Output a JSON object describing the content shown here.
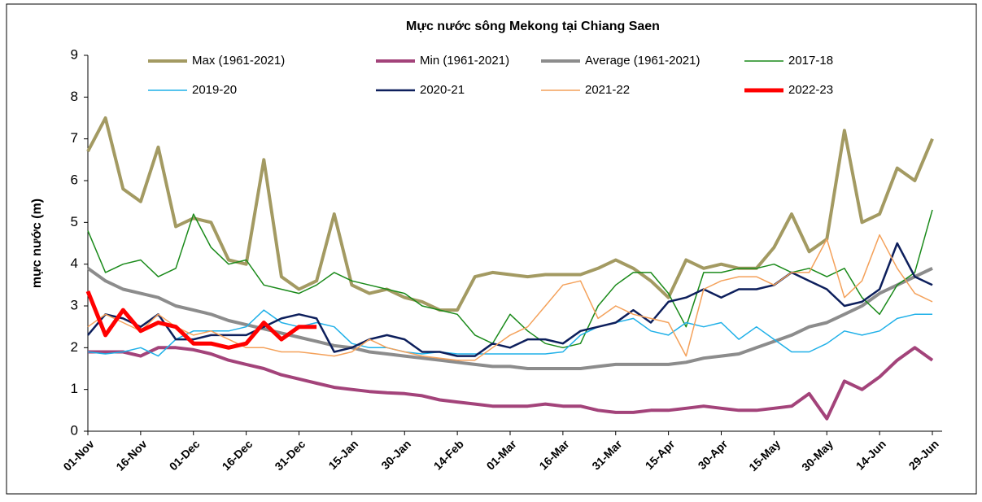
{
  "chart_data": {
    "type": "line",
    "title": "Mực nước sông Mekong tại Chiang Saen",
    "y_label": "mực nước (m)",
    "categories": [
      "01-Nov",
      null,
      null,
      "16-Nov",
      null,
      null,
      "01-Dec",
      null,
      null,
      "16-Dec",
      null,
      null,
      "31-Dec",
      null,
      null,
      "15-Jan",
      null,
      null,
      "30-Jan",
      null,
      null,
      "14-Feb",
      null,
      null,
      "01-Mar",
      null,
      null,
      "16-Mar",
      null,
      null,
      "31-Mar",
      null,
      null,
      "15-Apr",
      null,
      null,
      "30-Apr",
      null,
      null,
      "15-May",
      null,
      null,
      "30-May",
      null,
      null,
      "14-Jun",
      null,
      null,
      "29-Jun"
    ],
    "ylim": [
      0,
      9
    ],
    "yticks": [
      0,
      1,
      2,
      3,
      4,
      5,
      6,
      7,
      8,
      9
    ],
    "grid": false,
    "legend": "top",
    "series": [
      {
        "name": "Max (1961-2021)",
        "color": "#a39a62",
        "values": [
          6.7,
          7.5,
          5.8,
          5.5,
          6.8,
          4.9,
          5.1,
          5.0,
          4.1,
          4.0,
          6.5,
          3.7,
          3.4,
          3.6,
          5.2,
          3.5,
          3.3,
          3.4,
          3.2,
          3.1,
          2.9,
          2.9,
          3.7,
          3.8,
          3.75,
          3.7,
          3.75,
          3.75,
          3.75,
          3.9,
          4.1,
          3.9,
          3.6,
          3.2,
          4.1,
          3.9,
          4.0,
          3.9,
          3.9,
          4.4,
          5.2,
          4.3,
          4.6,
          7.2,
          5.0,
          5.2,
          6.3,
          6.0,
          7.0
        ]
      },
      {
        "name": "Min (1961-2021)",
        "color": "#a3437a",
        "values": [
          1.9,
          1.9,
          1.9,
          1.8,
          2.0,
          2.0,
          1.95,
          1.85,
          1.7,
          1.6,
          1.5,
          1.35,
          1.25,
          1.15,
          1.05,
          1.0,
          0.95,
          0.92,
          0.9,
          0.85,
          0.75,
          0.7,
          0.65,
          0.6,
          0.6,
          0.6,
          0.65,
          0.6,
          0.6,
          0.5,
          0.45,
          0.45,
          0.5,
          0.5,
          0.55,
          0.6,
          0.55,
          0.5,
          0.5,
          0.55,
          0.6,
          0.9,
          0.3,
          1.2,
          1.0,
          1.3,
          1.7,
          2.0,
          1.7
        ]
      },
      {
        "name": "Average (1961-2021)",
        "color": "#8c8c8c",
        "values": [
          3.9,
          3.6,
          3.4,
          3.3,
          3.2,
          3.0,
          2.9,
          2.8,
          2.65,
          2.55,
          2.45,
          2.35,
          2.25,
          2.15,
          2.05,
          2.0,
          1.9,
          1.85,
          1.8,
          1.75,
          1.7,
          1.65,
          1.6,
          1.55,
          1.55,
          1.5,
          1.5,
          1.5,
          1.5,
          1.55,
          1.6,
          1.6,
          1.6,
          1.6,
          1.65,
          1.75,
          1.8,
          1.85,
          2.0,
          2.15,
          2.3,
          2.5,
          2.6,
          2.8,
          3.0,
          3.3,
          3.5,
          3.7,
          3.9
        ]
      },
      {
        "name": "2017-18",
        "color": "#1a8a1a",
        "values": [
          4.8,
          3.8,
          4.0,
          4.1,
          3.7,
          3.9,
          5.2,
          4.4,
          4.0,
          4.1,
          3.5,
          3.4,
          3.3,
          3.5,
          3.8,
          3.6,
          3.5,
          3.4,
          3.3,
          3.0,
          2.9,
          2.8,
          2.3,
          2.1,
          2.8,
          2.4,
          2.1,
          2.0,
          2.1,
          3.0,
          3.5,
          3.8,
          3.8,
          3.3,
          2.5,
          3.8,
          3.8,
          3.9,
          3.9,
          4.0,
          3.8,
          3.9,
          3.7,
          3.9,
          3.2,
          2.8,
          3.5,
          3.8,
          5.3
        ]
      },
      {
        "name": "2019-20",
        "color": "#1fb0e8",
        "values": [
          1.9,
          1.85,
          1.9,
          2.0,
          1.8,
          2.2,
          2.4,
          2.4,
          2.4,
          2.5,
          2.9,
          2.6,
          2.5,
          2.6,
          2.5,
          2.1,
          2.0,
          2.0,
          1.9,
          1.85,
          1.9,
          1.85,
          1.85,
          1.85,
          1.85,
          1.85,
          1.85,
          1.9,
          2.3,
          2.5,
          2.6,
          2.7,
          2.4,
          2.3,
          2.6,
          2.5,
          2.6,
          2.2,
          2.5,
          2.2,
          1.9,
          1.9,
          2.1,
          2.4,
          2.3,
          2.4,
          2.7,
          2.8,
          2.8
        ]
      },
      {
        "name": "2020-21",
        "color": "#0d1f5c",
        "values": [
          2.3,
          2.8,
          2.7,
          2.5,
          2.8,
          2.2,
          2.2,
          2.3,
          2.3,
          2.3,
          2.5,
          2.7,
          2.8,
          2.7,
          1.9,
          2.0,
          2.2,
          2.3,
          2.2,
          1.9,
          1.9,
          1.8,
          1.8,
          2.1,
          2.0,
          2.2,
          2.2,
          2.1,
          2.4,
          2.5,
          2.6,
          2.9,
          2.6,
          3.1,
          3.2,
          3.4,
          3.2,
          3.4,
          3.4,
          3.5,
          3.8,
          3.6,
          3.4,
          3.0,
          3.1,
          3.4,
          4.5,
          3.7,
          3.5
        ]
      },
      {
        "name": "2021-22",
        "color": "#f4a15a",
        "values": [
          2.5,
          2.8,
          2.6,
          2.4,
          2.8,
          2.5,
          2.3,
          2.4,
          2.2,
          2.0,
          2.0,
          1.9,
          1.9,
          1.85,
          1.8,
          1.9,
          2.2,
          2.0,
          1.9,
          1.8,
          1.75,
          1.7,
          1.7,
          2.0,
          2.3,
          2.5,
          3.0,
          3.5,
          3.6,
          2.7,
          3.0,
          2.8,
          2.7,
          2.6,
          1.8,
          3.4,
          3.6,
          3.7,
          3.7,
          3.5,
          3.8,
          3.8,
          4.6,
          3.2,
          3.6,
          4.7,
          3.9,
          3.3,
          3.1
        ]
      },
      {
        "name": "2022-23",
        "color": "#ff0000",
        "values": [
          3.35,
          2.3,
          2.9,
          2.4,
          2.6,
          2.5,
          2.1,
          2.1,
          2.0,
          2.1,
          2.6,
          2.2,
          2.5,
          2.5,
          null,
          null,
          null,
          null,
          null,
          null,
          null,
          null,
          null,
          null,
          null,
          null,
          null,
          null,
          null,
          null,
          null,
          null,
          null,
          null,
          null,
          null,
          null,
          null,
          null,
          null,
          null,
          null,
          null,
          null,
          null,
          null,
          null,
          null,
          null
        ]
      }
    ]
  }
}
